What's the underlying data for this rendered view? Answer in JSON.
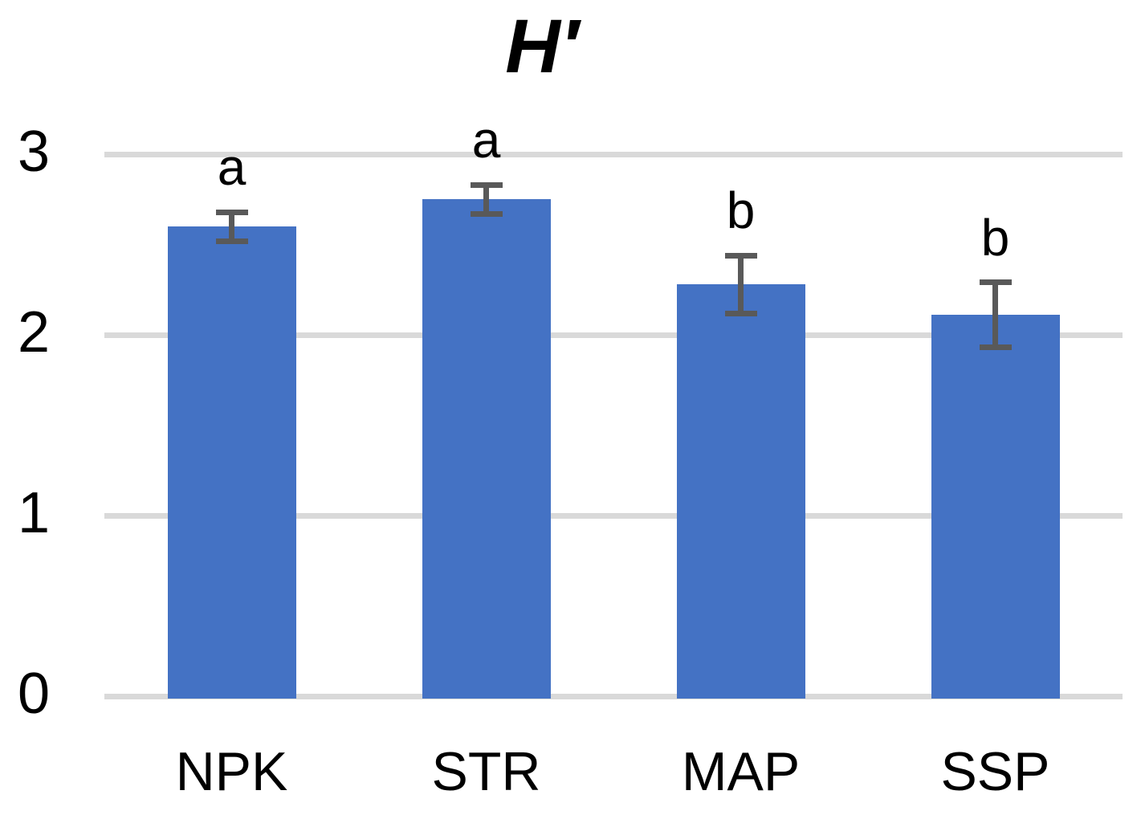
{
  "chart_data": {
    "type": "bar",
    "title": "H′",
    "categories": [
      "NPK",
      "STR",
      "MAP",
      "SSP"
    ],
    "values": [
      2.6,
      2.75,
      2.28,
      2.11
    ],
    "error_bars": [
      0.08,
      0.08,
      0.16,
      0.18
    ],
    "significance_letters": [
      "a",
      "a",
      "b",
      "b"
    ],
    "xlabel": "",
    "ylabel": "",
    "ylim": [
      0,
      3
    ],
    "yticks": [
      0,
      1,
      2,
      3
    ],
    "grid": true,
    "legend": false,
    "colors": {
      "bar": "#4472C4",
      "error_bar": "#595959",
      "gridline": "#D9D9D9",
      "text": "#000000",
      "background": "#FFFFFF"
    }
  }
}
